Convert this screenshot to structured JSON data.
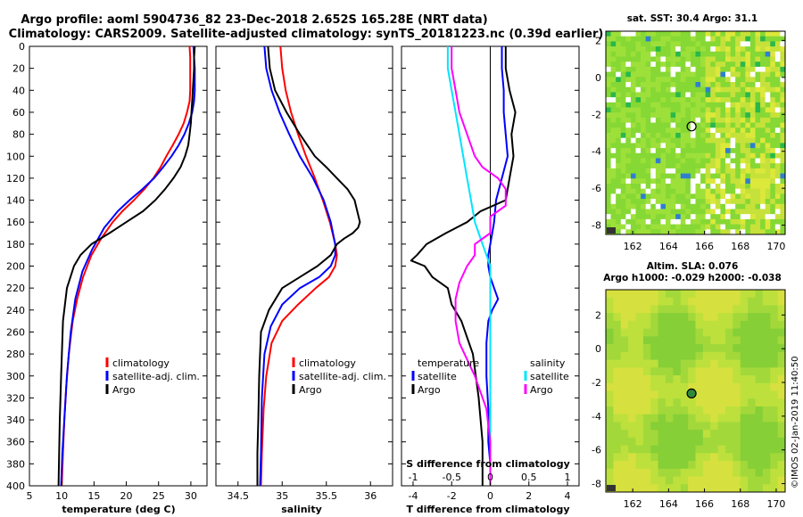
{
  "title_line1": "Argo profile: aoml 5904736_82 23-Dec-2018 2.652S 165.28E (NRT data)",
  "title_line2": "Climatology: CARS2009. Satellite-adjusted climatology: synTS_20181223.nc (0.39d earlier)",
  "timestamp": "©IMOS 02-Jan-2019 11:40:50",
  "colors": {
    "climatology": "#ff0000",
    "satellite": "#0000ff",
    "argo": "#000000",
    "sat_salinity": "#00e5ff",
    "argo_salinity": "#ff00ff"
  },
  "depth_ticks": [
    "0",
    "20",
    "40",
    "60",
    "80",
    "100",
    "120",
    "140",
    "160",
    "180",
    "200",
    "220",
    "240",
    "260",
    "280",
    "300",
    "320",
    "340",
    "360",
    "380",
    "400"
  ],
  "chart_data": [
    {
      "type": "line",
      "id": "temperature",
      "xlabel": "temperature (deg C)",
      "xlim": [
        5,
        32.5
      ],
      "ylim": [
        0,
        400
      ],
      "xticks": [
        "5",
        "10",
        "15",
        "20",
        "25",
        "30"
      ],
      "legend": [
        "climatology",
        "satellite-adj. clim.",
        "Argo"
      ],
      "series": [
        {
          "name": "climatology",
          "color": "#ff0000",
          "x": [
            29.8,
            29.9,
            29.9,
            29.9,
            29.9,
            29.8,
            29.4,
            28.9,
            28.1,
            27.2,
            26.2,
            25.3,
            24.2,
            22.8,
            21.2,
            19.4,
            17.9,
            16.1,
            14.6,
            13.3,
            12.4,
            11.7,
            11.1,
            10.7,
            10.4,
            10.2,
            10.0
          ],
          "y": [
            0,
            10,
            20,
            30,
            40,
            50,
            60,
            70,
            80,
            90,
            100,
            110,
            120,
            130,
            140,
            150,
            160,
            175,
            190,
            210,
            230,
            250,
            280,
            310,
            340,
            370,
            400
          ]
        },
        {
          "name": "satellite-adj. clim.",
          "color": "#0000ff",
          "x": [
            30.4,
            30.5,
            30.6,
            30.6,
            30.6,
            30.5,
            30.2,
            29.7,
            29.0,
            28.1,
            27.0,
            25.7,
            24.3,
            22.5,
            20.5,
            18.7,
            16.6,
            14.7,
            13.2,
            12.1,
            11.4,
            10.8,
            10.4,
            10.1,
            9.9
          ],
          "y": [
            0,
            10,
            20,
            30,
            40,
            50,
            60,
            70,
            80,
            90,
            100,
            110,
            120,
            130,
            140,
            150,
            165,
            185,
            205,
            230,
            260,
            300,
            340,
            370,
            400
          ]
        },
        {
          "name": "Argo",
          "color": "#000000",
          "x": [
            30.6,
            30.5,
            30.5,
            30.4,
            30.3,
            30.2,
            30.1,
            30.0,
            29.8,
            29.6,
            29.1,
            28.4,
            27.3,
            26.0,
            24.5,
            22.6,
            20.0,
            17.4,
            14.6,
            12.9,
            11.9,
            10.8,
            10.2,
            9.9,
            9.7,
            9.6,
            9.5
          ],
          "y": [
            0,
            10,
            20,
            30,
            40,
            50,
            60,
            70,
            80,
            90,
            100,
            110,
            120,
            130,
            140,
            150,
            160,
            170,
            180,
            190,
            200,
            220,
            250,
            300,
            340,
            370,
            400
          ]
        }
      ]
    },
    {
      "type": "line",
      "id": "salinity",
      "xlabel": "salinity",
      "xlim": [
        34.25,
        36.25
      ],
      "ylim": [
        0,
        400
      ],
      "xticks": [
        "34.5",
        "35",
        "35.5",
        "36"
      ],
      "legend": [
        "climatology",
        "satellite-adj. clim.",
        "Argo"
      ],
      "series": [
        {
          "name": "climatology",
          "color": "#ff0000",
          "x": [
            34.98,
            35.0,
            35.04,
            35.1,
            35.18,
            35.27,
            35.37,
            35.46,
            35.54,
            35.6,
            35.62,
            35.6,
            35.53,
            35.38,
            35.18,
            35.0,
            34.88,
            34.82,
            34.79,
            34.77,
            34.76
          ],
          "y": [
            0,
            20,
            40,
            60,
            80,
            100,
            120,
            140,
            160,
            180,
            190,
            200,
            210,
            220,
            235,
            250,
            270,
            300,
            330,
            370,
            400
          ]
        },
        {
          "name": "satellite-adj. clim.",
          "color": "#0000ff",
          "x": [
            34.8,
            34.82,
            34.88,
            34.97,
            35.08,
            35.2,
            35.35,
            35.47,
            35.55,
            35.6,
            35.6,
            35.55,
            35.42,
            35.2,
            35.0,
            34.87,
            34.8,
            34.77,
            34.76,
            34.75
          ],
          "y": [
            0,
            20,
            40,
            60,
            80,
            100,
            120,
            140,
            160,
            180,
            190,
            200,
            210,
            220,
            235,
            255,
            280,
            320,
            370,
            400
          ]
        },
        {
          "name": "Argo",
          "color": "#000000",
          "x": [
            34.84,
            34.86,
            34.92,
            35.05,
            35.2,
            35.37,
            35.5,
            35.62,
            35.74,
            35.82,
            35.85,
            35.88,
            35.86,
            35.8,
            35.7,
            35.62,
            35.55,
            35.4,
            35.2,
            35.0,
            34.85,
            34.76,
            34.74,
            34.73,
            34.72,
            34.72
          ],
          "y": [
            0,
            20,
            40,
            60,
            80,
            100,
            110,
            120,
            130,
            140,
            150,
            160,
            165,
            170,
            175,
            180,
            190,
            200,
            210,
            220,
            240,
            260,
            300,
            340,
            370,
            400
          ]
        }
      ]
    },
    {
      "type": "line",
      "id": "difference",
      "xlabel": "T difference from climatology",
      "xlabel_top": "S difference from climatology",
      "xlim": [
        -4.6,
        4.6
      ],
      "ylim": [
        0,
        400
      ],
      "xticks": [
        "-4",
        "-2",
        "0",
        "2",
        "4"
      ],
      "xticks_top": [
        "-1",
        "-0.5",
        "0",
        "0.5",
        "1"
      ],
      "legend_temperature": [
        "temperature",
        "satellite",
        "Argo"
      ],
      "legend_salinity": [
        "salinity",
        "satellite",
        "Argo"
      ],
      "series": [
        {
          "name": "temperature satellite",
          "color": "#0000ff",
          "x": [
            0.6,
            0.6,
            0.7,
            0.7,
            0.8,
            0.9,
            0.6,
            0.3,
            0.2,
            0.1,
            0.0,
            -0.1,
            -0.1,
            0.0,
            0.2,
            0.4,
            0.1,
            -0.1,
            -0.2,
            -0.2,
            -0.1,
            -0.1,
            0.0,
            0.0
          ],
          "y": [
            0,
            20,
            40,
            60,
            80,
            100,
            120,
            140,
            160,
            170,
            180,
            190,
            200,
            210,
            220,
            230,
            240,
            250,
            270,
            300,
            330,
            360,
            380,
            400
          ]
        },
        {
          "name": "temperature Argo",
          "color": "#000000",
          "x": [
            0.8,
            0.8,
            1.0,
            1.3,
            1.1,
            1.2,
            1.0,
            0.8,
            -0.5,
            -1.2,
            -2.3,
            -3.3,
            -3.8,
            -4.1,
            -3.4,
            -3.0,
            -2.2,
            -2.0,
            -1.5,
            -0.9,
            -0.6,
            -0.4,
            -0.4
          ],
          "y": [
            0,
            20,
            40,
            60,
            80,
            100,
            120,
            140,
            150,
            160,
            170,
            180,
            190,
            195,
            200,
            210,
            220,
            235,
            250,
            280,
            320,
            360,
            400
          ]
        },
        {
          "name": "salinity satellite",
          "color": "#00e5ff",
          "x": [
            -0.55,
            -0.55,
            -0.5,
            -0.45,
            -0.4,
            -0.35,
            -0.3,
            -0.25,
            -0.2,
            -0.15,
            -0.1,
            -0.05,
            0.0,
            0.0,
            0.0,
            0.0,
            0.0,
            0.0,
            0.0,
            0.0,
            0.0
          ],
          "y": [
            0,
            20,
            40,
            60,
            80,
            100,
            120,
            140,
            160,
            170,
            180,
            190,
            200,
            220,
            240,
            260,
            290,
            320,
            350,
            380,
            400
          ]
        },
        {
          "name": "salinity Argo",
          "color": "#ff00ff",
          "x": [
            -0.5,
            -0.5,
            -0.45,
            -0.4,
            -0.3,
            -0.2,
            -0.1,
            0.1,
            0.2,
            0.2,
            0.0,
            0.0,
            -0.2,
            -0.2,
            -0.3,
            -0.4,
            -0.45,
            -0.45,
            -0.4,
            -0.2,
            -0.05,
            0.0,
            0.0
          ],
          "y": [
            0,
            20,
            40,
            60,
            80,
            100,
            110,
            120,
            130,
            145,
            155,
            170,
            180,
            190,
            200,
            215,
            230,
            250,
            270,
            300,
            330,
            360,
            400
          ]
        }
      ]
    },
    {
      "type": "heatmap",
      "id": "sst_map",
      "title": "sat. SST: 30.4 Argo: 31.1",
      "xlim": [
        160.5,
        170.5
      ],
      "ylim": [
        -8.5,
        2.5
      ],
      "xticks": [
        "162",
        "164",
        "166",
        "168",
        "170"
      ],
      "yticks": [
        "2",
        "0",
        "-2",
        "-4",
        "-6",
        "-8"
      ],
      "marker": {
        "lon": 165.28,
        "lat": -2.652
      }
    },
    {
      "type": "heatmap",
      "id": "sla_map",
      "title": "Altim. SLA: 0.076",
      "subtitle": "Argo h1000: -0.029 h2000: -0.038",
      "xlim": [
        160.5,
        170.5
      ],
      "ylim": [
        -8.5,
        3.5
      ],
      "xticks": [
        "162",
        "164",
        "166",
        "168",
        "170"
      ],
      "yticks": [
        "2",
        "0",
        "-2",
        "-4",
        "-6",
        "-8"
      ],
      "marker": {
        "lon": 165.28,
        "lat": -2.652
      }
    }
  ]
}
